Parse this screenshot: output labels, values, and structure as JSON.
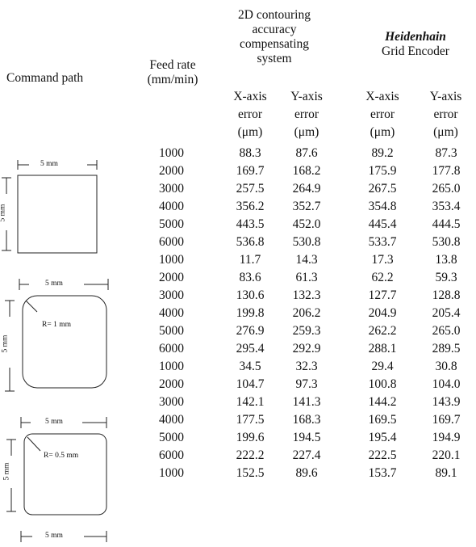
{
  "headers": {
    "command_path": "Command path",
    "feed_rate_line1": "Feed rate",
    "feed_rate_line2": "(mm/min)",
    "system_title_lines": [
      "2D contouring",
      "accuracy",
      "compensating",
      "system"
    ],
    "encoder_brand": "Heidenhain",
    "encoder_name": "Grid Encoder",
    "x_axis": "X-axis",
    "y_axis": "Y-axis",
    "error": "error",
    "unit": "(μm)"
  },
  "paths": [
    {
      "width_label": "5 mm",
      "height_label": "5 mm",
      "radius_label": ""
    },
    {
      "width_label": "5 mm",
      "height_label": "5 mm",
      "radius_label": "R= 1 mm"
    },
    {
      "width_label": "5 mm",
      "height_label": "5 mm",
      "radius_label": "R= 0.5 mm"
    },
    {
      "width_label": "5 mm"
    }
  ],
  "rows": [
    {
      "feed": "1000",
      "sys_x": "88.3",
      "sys_y": "87.6",
      "hd_x": "89.2",
      "hd_y": "87.3"
    },
    {
      "feed": "2000",
      "sys_x": "169.7",
      "sys_y": "168.2",
      "hd_x": "175.9",
      "hd_y": "177.8"
    },
    {
      "feed": "3000",
      "sys_x": "257.5",
      "sys_y": "264.9",
      "hd_x": "267.5",
      "hd_y": "265.0"
    },
    {
      "feed": "4000",
      "sys_x": "356.2",
      "sys_y": "352.7",
      "hd_x": "354.8",
      "hd_y": "353.4"
    },
    {
      "feed": "5000",
      "sys_x": "443.5",
      "sys_y": "452.0",
      "hd_x": "445.4",
      "hd_y": "444.5"
    },
    {
      "feed": "6000",
      "sys_x": "536.8",
      "sys_y": "530.8",
      "hd_x": "533.7",
      "hd_y": "530.8"
    },
    {
      "feed": "1000",
      "sys_x": "11.7",
      "sys_y": "14.3",
      "hd_x": "17.3",
      "hd_y": "13.8"
    },
    {
      "feed": "2000",
      "sys_x": "83.6",
      "sys_y": "61.3",
      "hd_x": "62.2",
      "hd_y": "59.3"
    },
    {
      "feed": "3000",
      "sys_x": "130.6",
      "sys_y": "132.3",
      "hd_x": "127.7",
      "hd_y": "128.8"
    },
    {
      "feed": "4000",
      "sys_x": "199.8",
      "sys_y": "206.2",
      "hd_x": "204.9",
      "hd_y": "205.4"
    },
    {
      "feed": "5000",
      "sys_x": "276.9",
      "sys_y": "259.3",
      "hd_x": "262.2",
      "hd_y": "265.0"
    },
    {
      "feed": "6000",
      "sys_x": "295.4",
      "sys_y": "292.9",
      "hd_x": "288.1",
      "hd_y": "289.5"
    },
    {
      "feed": "1000",
      "sys_x": "34.5",
      "sys_y": "32.3",
      "hd_x": "29.4",
      "hd_y": "30.8"
    },
    {
      "feed": "2000",
      "sys_x": "104.7",
      "sys_y": "97.3",
      "hd_x": "100.8",
      "hd_y": "104.0"
    },
    {
      "feed": "3000",
      "sys_x": "142.1",
      "sys_y": "141.3",
      "hd_x": "144.2",
      "hd_y": "143.9"
    },
    {
      "feed": "4000",
      "sys_x": "177.5",
      "sys_y": "168.3",
      "hd_x": "169.5",
      "hd_y": "169.7"
    },
    {
      "feed": "5000",
      "sys_x": "199.6",
      "sys_y": "194.5",
      "hd_x": "195.4",
      "hd_y": "194.9"
    },
    {
      "feed": "6000",
      "sys_x": "222.2",
      "sys_y": "227.4",
      "hd_x": "222.5",
      "hd_y": "220.1"
    },
    {
      "feed": "1000",
      "sys_x": "152.5",
      "sys_y": "89.6",
      "hd_x": "153.7",
      "hd_y": "89.1"
    }
  ]
}
